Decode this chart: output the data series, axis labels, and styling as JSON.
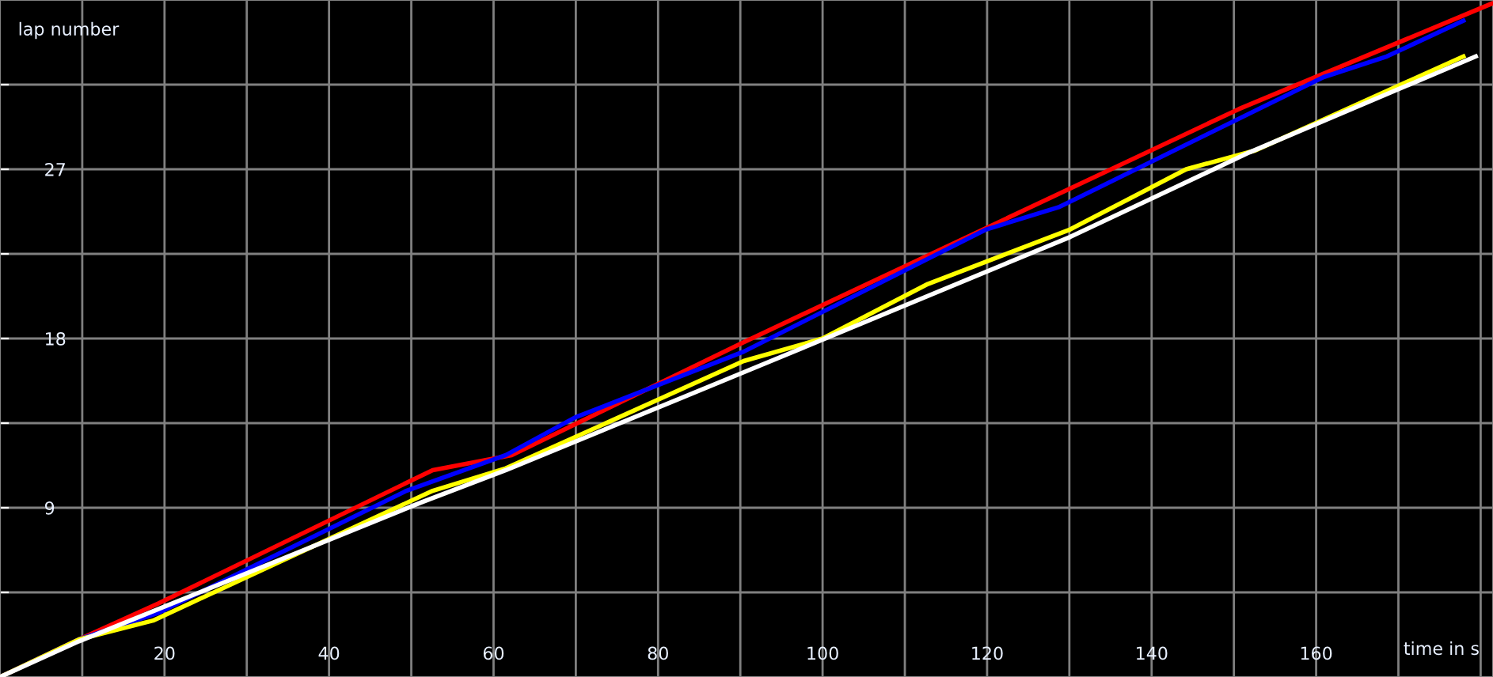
{
  "chart_data": {
    "type": "line",
    "xlabel": "time in s",
    "ylabel": "lap number",
    "xlim": [
      0,
      181.5
    ],
    "ylim": [
      0,
      36
    ],
    "xticks": [
      {
        "value": 10,
        "label": null
      },
      20,
      {
        "value": 30,
        "label": null
      },
      40,
      {
        "value": 50,
        "label": null
      },
      60,
      {
        "value": 70,
        "label": null
      },
      80,
      {
        "value": 90,
        "label": null
      },
      100,
      {
        "value": 110,
        "label": null
      },
      120,
      {
        "value": 130,
        "label": null
      },
      140,
      {
        "value": 150,
        "label": null
      },
      160,
      {
        "value": 170,
        "label": null
      },
      {
        "value": 180,
        "label": null
      }
    ],
    "yticks": [
      {
        "value": 4.5,
        "label": null
      },
      9,
      {
        "value": 13.5,
        "label": null
      },
      18,
      {
        "value": 22.5,
        "label": null
      },
      27,
      {
        "value": 31.5,
        "label": null
      }
    ],
    "grid": true,
    "legend": false,
    "marker": "none",
    "line_style": "solid",
    "series": [
      {
        "color": "#ff0000",
        "x": [
          0,
          9.6,
          19.2,
          52.6,
          62.2,
          90.4,
          150.6,
          181.3
        ],
        "values": [
          0,
          2.0,
          3.9,
          11.0,
          11.8,
          17.8,
          30.2,
          35.8
        ]
      },
      {
        "color": "#0000ff",
        "x": [
          0,
          9.6,
          19.2,
          49.4,
          61.5,
          69.9,
          90.4,
          119.9,
          128.8,
          160.9,
          168.6,
          177.9
        ],
        "values": [
          0,
          2.0,
          3.4,
          9.9,
          11.8,
          13.8,
          17.3,
          23.8,
          25.0,
          31.9,
          33.0,
          34.9
        ]
      },
      {
        "color": "#ffff00",
        "x": [
          0,
          9.6,
          18.6,
          52.6,
          61.5,
          90.4,
          100,
          112.8,
          130.1,
          144.2,
          152.6,
          177.9
        ],
        "values": [
          0,
          2.0,
          3.0,
          9.9,
          11.1,
          16.8,
          18.0,
          20.9,
          23.8,
          27.0,
          28.0,
          33.0
        ]
      },
      {
        "color": "#ffffff",
        "x": [
          0,
          9.6,
          51.3,
          61.5,
          90.4,
          130.1,
          151.9,
          179.4
        ],
        "values": [
          0,
          1.9,
          9.3,
          11.0,
          16.2,
          23.4,
          27.9,
          33.0
        ]
      }
    ]
  }
}
